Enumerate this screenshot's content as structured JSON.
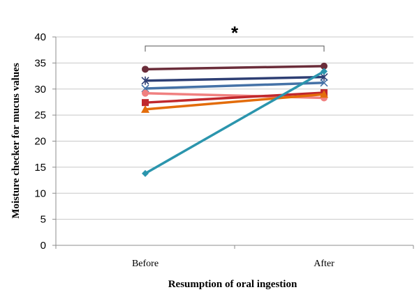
{
  "chart_data": {
    "type": "line",
    "title": "",
    "xlabel": "Resumption of oral ingestion",
    "ylabel": "Moisture checker for mucus values",
    "categories": [
      "Before",
      "After"
    ],
    "ylim": [
      0,
      40
    ],
    "yticks": [
      0,
      5,
      10,
      15,
      20,
      25,
      30,
      35,
      40
    ],
    "grid": true,
    "annotation": "*",
    "series": [
      {
        "values": [
          33.8,
          34.4
        ],
        "color": "#6b2d3a",
        "marker": "circle"
      },
      {
        "values": [
          31.6,
          32.3
        ],
        "color": "#2e3f74",
        "marker": "star"
      },
      {
        "values": [
          30.1,
          31.2
        ],
        "color": "#4572a7",
        "marker": "x"
      },
      {
        "values": [
          29.2,
          28.3
        ],
        "color": "#f08080",
        "marker": "circle"
      },
      {
        "values": [
          27.4,
          29.3
        ],
        "color": "#c0282d",
        "marker": "square"
      },
      {
        "values": [
          26.1,
          29.0
        ],
        "color": "#e36c0a",
        "marker": "triangle"
      },
      {
        "values": [
          13.8,
          33.4
        ],
        "color": "#2b95ad",
        "marker": "diamond"
      }
    ]
  }
}
